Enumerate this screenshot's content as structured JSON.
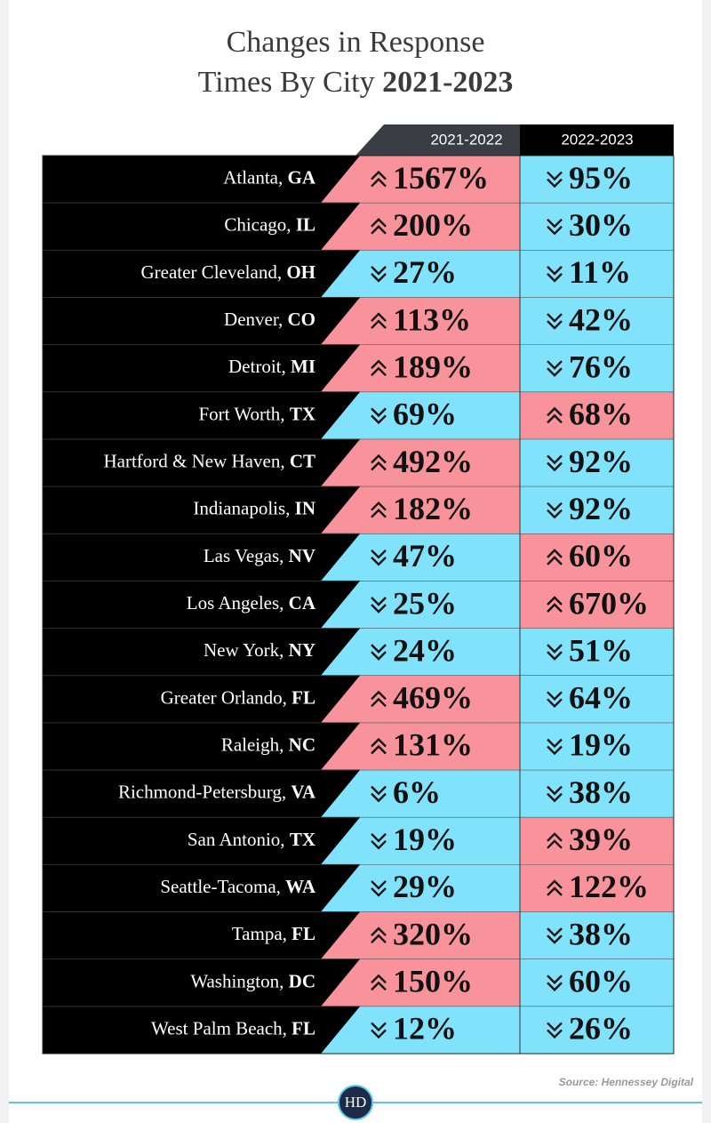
{
  "title": {
    "line1": "Changes in Response",
    "line2": "Times By City",
    "years": "2021-2023"
  },
  "table": {
    "headers": [
      "2021-2022",
      "2022-2023"
    ],
    "rows": [
      {
        "city": "Atlanta,",
        "state": "GA",
        "cells": [
          {
            "text": "1567%",
            "trend": "up"
          },
          {
            "text": "95%",
            "trend": "down"
          }
        ]
      },
      {
        "city": "Chicago,",
        "state": "IL",
        "cells": [
          {
            "text": "200%",
            "trend": "up"
          },
          {
            "text": "30%",
            "trend": "down"
          }
        ]
      },
      {
        "city": "Greater Cleveland,",
        "state": "OH",
        "cells": [
          {
            "text": "27%",
            "trend": "down"
          },
          {
            "text": "11%",
            "trend": "down"
          }
        ]
      },
      {
        "city": "Denver,",
        "state": "CO",
        "cells": [
          {
            "text": "113%",
            "trend": "up"
          },
          {
            "text": "42%",
            "trend": "down"
          }
        ]
      },
      {
        "city": "Detroit,",
        "state": "MI",
        "cells": [
          {
            "text": "189%",
            "trend": "up"
          },
          {
            "text": "76%",
            "trend": "down"
          }
        ]
      },
      {
        "city": "Fort Worth,",
        "state": "TX",
        "cells": [
          {
            "text": "69%",
            "trend": "down"
          },
          {
            "text": "68%",
            "trend": "up"
          }
        ]
      },
      {
        "city": "Hartford & New Haven,",
        "state": "CT",
        "cells": [
          {
            "text": "492%",
            "trend": "up"
          },
          {
            "text": "92%",
            "trend": "down"
          }
        ]
      },
      {
        "city": "Indianapolis,",
        "state": "IN",
        "cells": [
          {
            "text": "182%",
            "trend": "up"
          },
          {
            "text": "92%",
            "trend": "down"
          }
        ]
      },
      {
        "city": "Las Vegas,",
        "state": "NV",
        "cells": [
          {
            "text": "47%",
            "trend": "down"
          },
          {
            "text": "60%",
            "trend": "up"
          }
        ]
      },
      {
        "city": "Los Angeles,",
        "state": "CA",
        "cells": [
          {
            "text": "25%",
            "trend": "down"
          },
          {
            "text": "670%",
            "trend": "up"
          }
        ]
      },
      {
        "city": "New York,",
        "state": "NY",
        "cells": [
          {
            "text": "24%",
            "trend": "down"
          },
          {
            "text": "51%",
            "trend": "down"
          }
        ]
      },
      {
        "city": "Greater Orlando,",
        "state": "FL",
        "cells": [
          {
            "text": "469%",
            "trend": "up"
          },
          {
            "text": "64%",
            "trend": "down"
          }
        ]
      },
      {
        "city": "Raleigh,",
        "state": "NC",
        "cells": [
          {
            "text": "131%",
            "trend": "up"
          },
          {
            "text": "19%",
            "trend": "down"
          }
        ]
      },
      {
        "city": "Richmond-Petersburg,",
        "state": "VA",
        "cells": [
          {
            "text": "6%",
            "trend": "down"
          },
          {
            "text": "38%",
            "trend": "down"
          }
        ]
      },
      {
        "city": "San Antonio,",
        "state": "TX",
        "cells": [
          {
            "text": "19%",
            "trend": "down"
          },
          {
            "text": "39%",
            "trend": "up"
          }
        ]
      },
      {
        "city": "Seattle-Tacoma,",
        "state": "WA",
        "cells": [
          {
            "text": "29%",
            "trend": "down"
          },
          {
            "text": "122%",
            "trend": "up"
          }
        ]
      },
      {
        "city": "Tampa,",
        "state": "FL",
        "cells": [
          {
            "text": "320%",
            "trend": "up"
          },
          {
            "text": "38%",
            "trend": "down"
          }
        ]
      },
      {
        "city": "Washington,",
        "state": "DC",
        "cells": [
          {
            "text": "150%",
            "trend": "up"
          },
          {
            "text": "60%",
            "trend": "down"
          }
        ]
      },
      {
        "city": "West Palm Beach,",
        "state": "FL",
        "cells": [
          {
            "text": "12%",
            "trend": "down"
          },
          {
            "text": "26%",
            "trend": "down"
          }
        ]
      }
    ]
  },
  "footer": {
    "source": "Source: Hennessey Digital",
    "logo": "HD"
  }
}
